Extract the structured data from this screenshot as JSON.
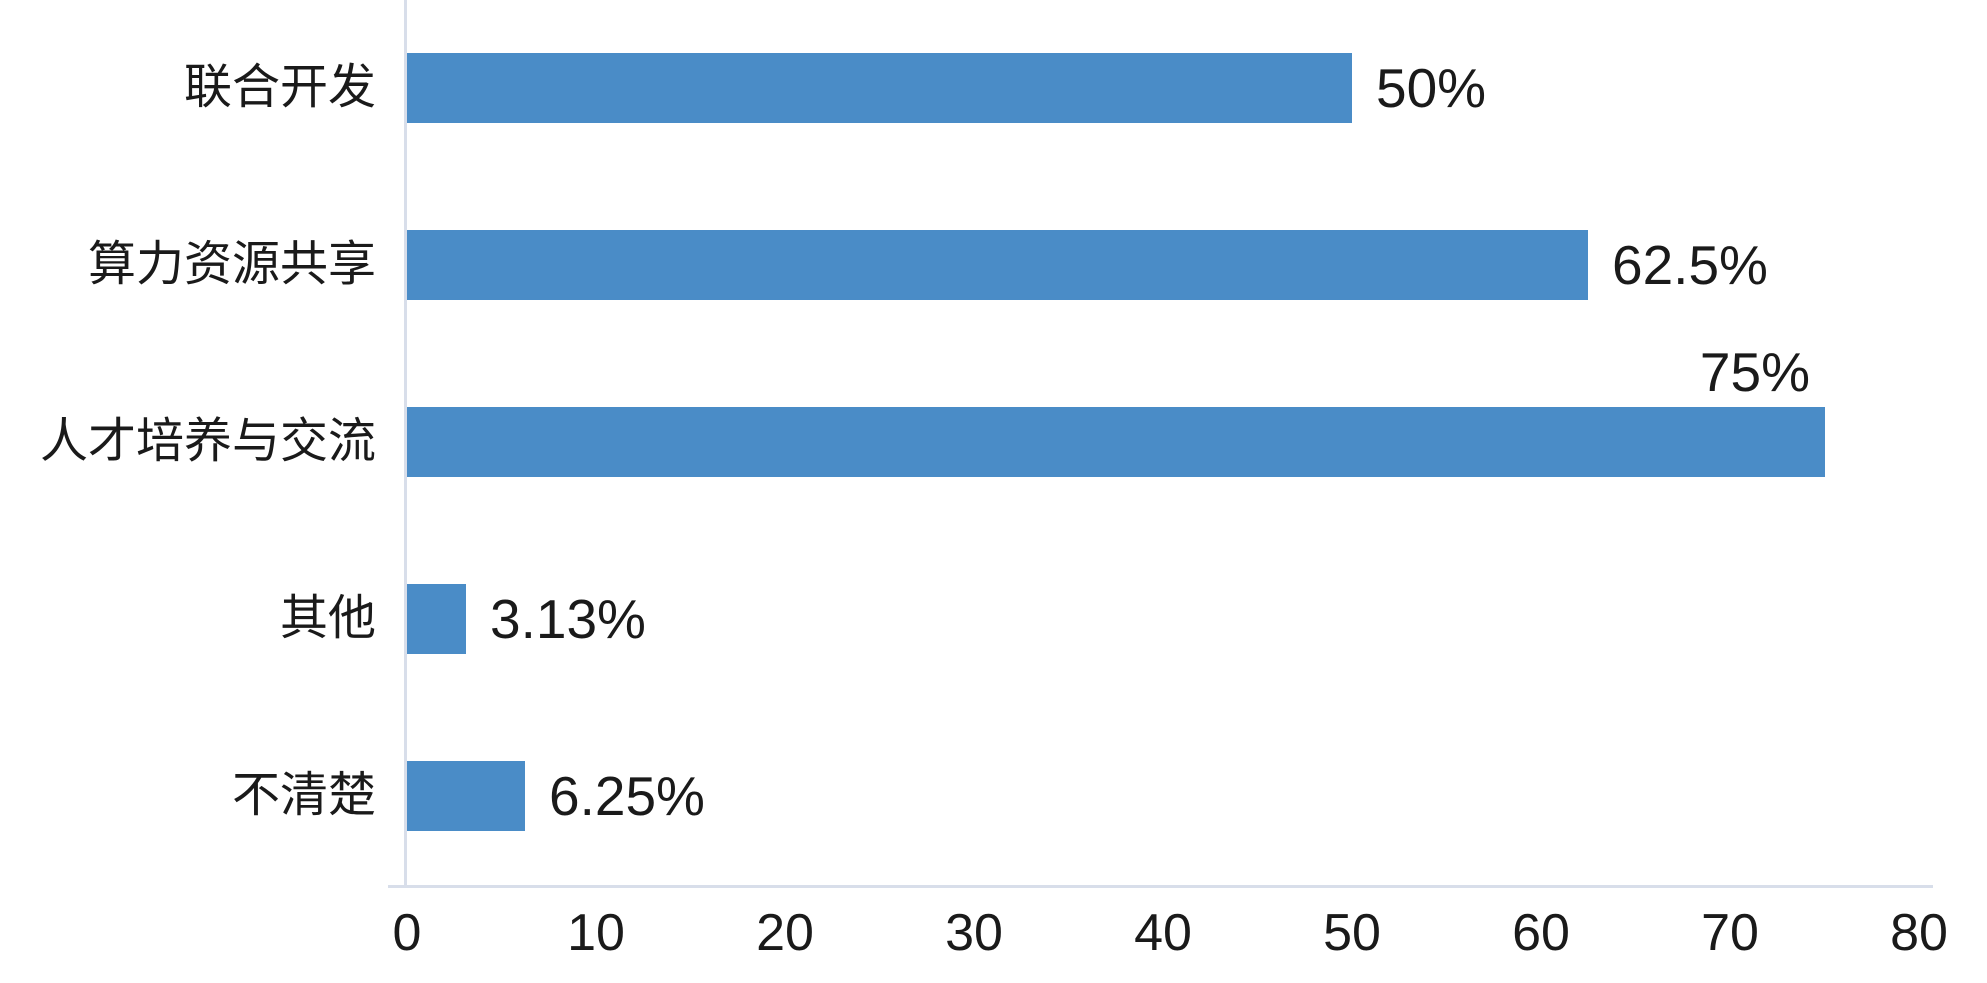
{
  "chart_data": {
    "type": "bar",
    "orientation": "horizontal",
    "title": "",
    "categories": [
      "联合开发",
      "算力资源共享",
      "人才培养与交流",
      "其他",
      "不清楚"
    ],
    "values": [
      50,
      62.5,
      75,
      3.13,
      6.25
    ],
    "value_labels": [
      "50%",
      "62.5%",
      "75%",
      "3.13%",
      "6.25%"
    ],
    "value_label_position": [
      "right",
      "right",
      "above",
      "right",
      "right"
    ],
    "xlabel": "",
    "ylabel": "",
    "xlim": [
      0,
      80
    ],
    "xticks": [
      "0",
      "10",
      "20",
      "30",
      "40",
      "50",
      "60",
      "70",
      "80"
    ],
    "grid": false,
    "legend": "none",
    "colors": {
      "bar": "#4A8CC7",
      "axis_line": "#D8DEEA",
      "text": "#1A1A1A",
      "background": "#FFFFFF"
    }
  }
}
